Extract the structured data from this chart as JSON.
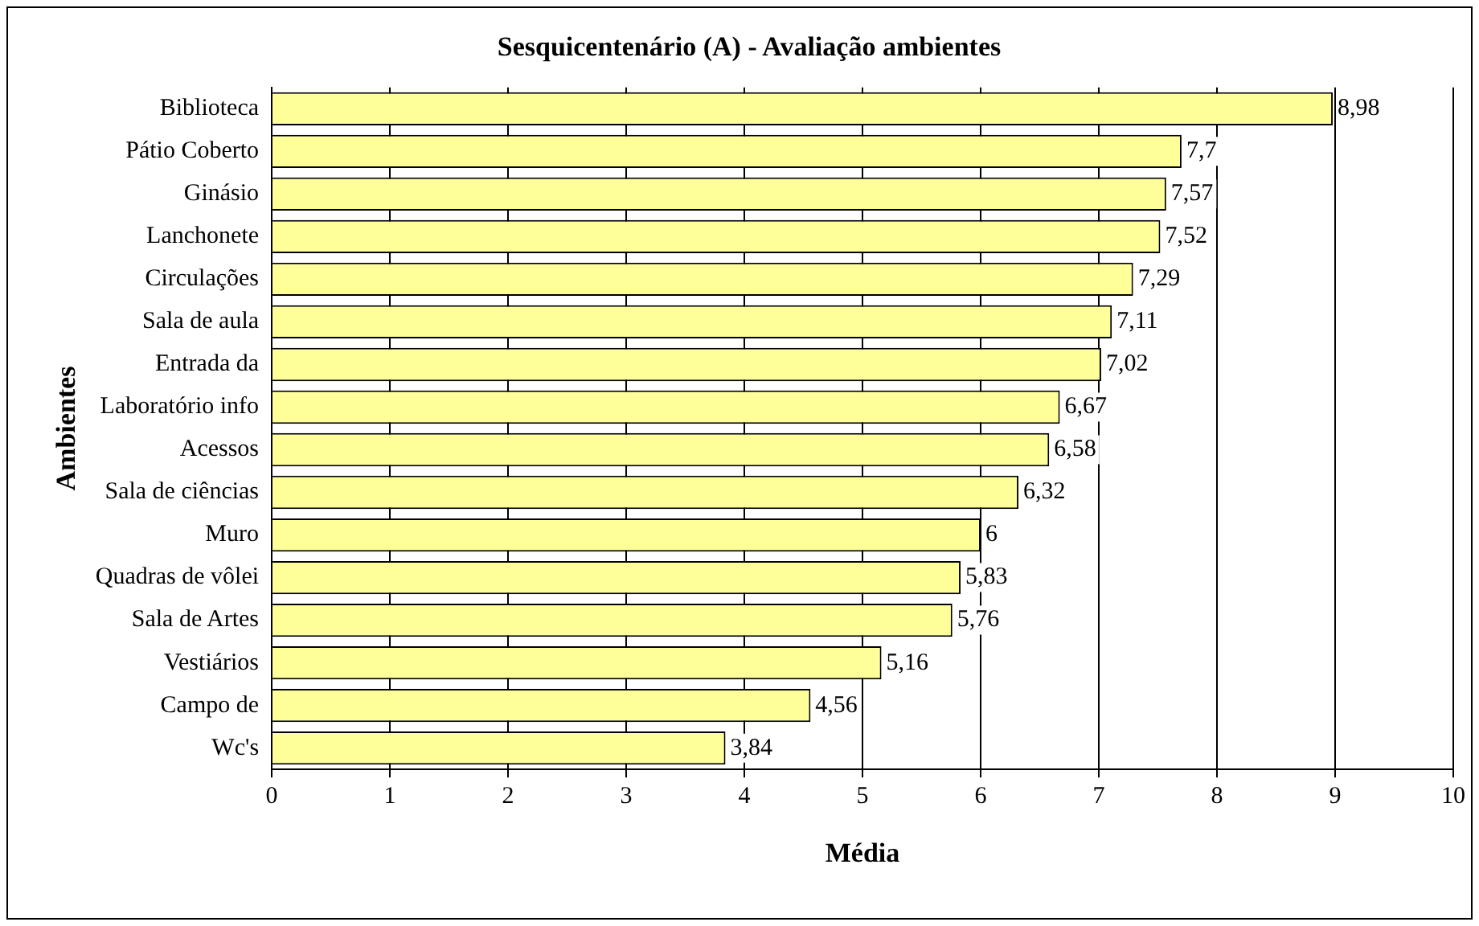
{
  "chart_data": {
    "type": "bar",
    "orientation": "horizontal",
    "title": "Sesquicentenário (A) - Avaliação ambientes",
    "xlabel": "Média",
    "ylabel": "Ambientes",
    "categories": [
      "Biblioteca",
      "Pátio Coberto",
      "Ginásio",
      "Lanchonete",
      "Circulações",
      "Sala de aula",
      "Entrada da",
      "Laboratório info",
      "Acessos",
      "Sala de ciências",
      "Muro",
      "Quadras de vôlei",
      "Sala de Artes",
      "Vestiários",
      "Campo de",
      "Wc's"
    ],
    "values": [
      8.98,
      7.7,
      7.57,
      7.52,
      7.29,
      7.11,
      7.02,
      6.67,
      6.58,
      6.32,
      6,
      5.83,
      5.76,
      5.16,
      4.56,
      3.84
    ],
    "value_labels": [
      "8,98",
      "7,7",
      "7,57",
      "7,52",
      "7,29",
      "7,11",
      "7,02",
      "6,67",
      "6,58",
      "6,32",
      "6",
      "5,83",
      "5,76",
      "5,16",
      "4,56",
      "3,84"
    ],
    "color": "#ffff99",
    "xlim": [
      0,
      10
    ],
    "xticks": [
      0,
      1,
      2,
      3,
      4,
      5,
      6,
      7,
      8,
      9,
      10
    ],
    "grid": "x",
    "legend": false
  }
}
